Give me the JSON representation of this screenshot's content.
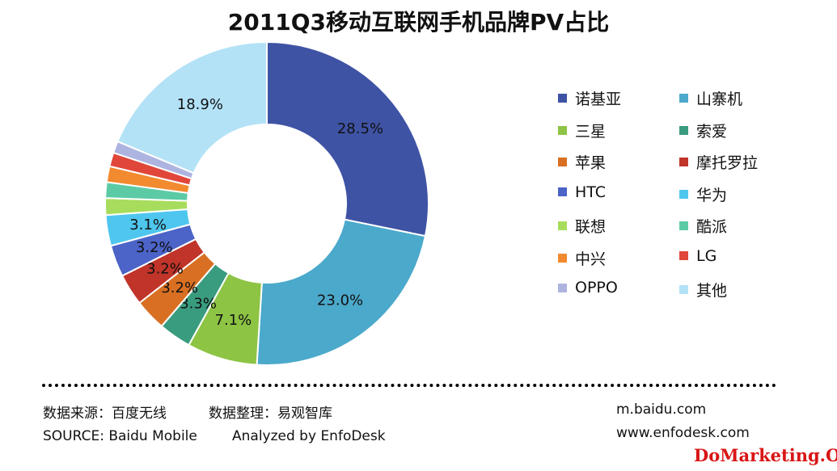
{
  "chart_data": {
    "type": "pie",
    "title": "2011Q3移动互联网手机品牌PV占比",
    "donut": true,
    "legend_position": "right",
    "slices": [
      {
        "label": "诺基亚",
        "value": 28.5,
        "display": "28.5%",
        "color": "#3F53A5"
      },
      {
        "label": "山寨机",
        "value": 23.0,
        "display": "23.0%",
        "color": "#4BA9CB"
      },
      {
        "label": "三星",
        "value": 7.1,
        "display": "7.1%",
        "color": "#8DC444"
      },
      {
        "label": "索爱",
        "value": 3.3,
        "display": "3.3%",
        "color": "#3A9C7F"
      },
      {
        "label": "苹果",
        "value": 3.2,
        "display": "3.2%",
        "color": "#D86F22"
      },
      {
        "label": "摩托罗拉",
        "value": 3.2,
        "display": "3.2%",
        "color": "#C0342A"
      },
      {
        "label": "HTC",
        "value": 3.2,
        "display": "3.2%",
        "color": "#4C63C7"
      },
      {
        "label": "华为",
        "value": 3.1,
        "display": "3.1%",
        "color": "#4FC6EE"
      },
      {
        "label": "联想",
        "value": 1.7,
        "display": "",
        "color": "#A8DC5C"
      },
      {
        "label": "酷派",
        "value": 1.6,
        "display": "",
        "color": "#5CCBA5"
      },
      {
        "label": "中兴",
        "value": 1.6,
        "display": "",
        "color": "#F28A30"
      },
      {
        "label": "LG",
        "value": 1.4,
        "display": "",
        "color": "#E0463A"
      },
      {
        "label": "OPPO",
        "value": 1.2,
        "display": "",
        "color": "#AEB4E0"
      },
      {
        "label": "其他",
        "value": 18.9,
        "display": "18.9%",
        "color": "#B3E2F7"
      }
    ]
  },
  "footer": {
    "source_cn": "数据来源：百度无线",
    "analysis_cn": "数据整理：易观智库",
    "source_en": "SOURCE: Baidu Mobile",
    "analysis_en": "Analyzed by EnfoDesk",
    "url1": "m.baidu.com",
    "url2": "www.enfodesk.com"
  },
  "watermark": "DoMarketing.Org"
}
